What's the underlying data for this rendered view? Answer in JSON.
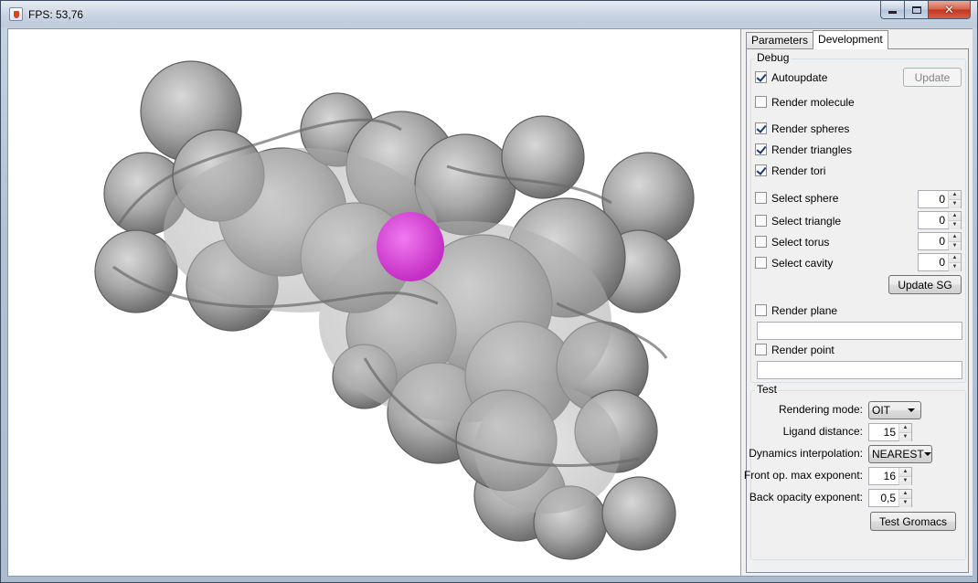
{
  "window": {
    "title": "FPS: 53,76"
  },
  "tabs": [
    {
      "label": "Parameters",
      "active": false
    },
    {
      "label": "Development",
      "active": true
    }
  ],
  "debug": {
    "title": "Debug",
    "autoupdate": {
      "label": "Autoupdate",
      "checked": true
    },
    "update_button": "Update",
    "render_molecule": {
      "label": "Render molecule",
      "checked": false
    },
    "render_spheres": {
      "label": "Render spheres",
      "checked": true
    },
    "render_triangles": {
      "label": "Render triangles",
      "checked": true
    },
    "render_tori": {
      "label": "Render tori",
      "checked": true
    },
    "select_sphere": {
      "label": "Select sphere",
      "checked": false,
      "value": "0"
    },
    "select_triangle": {
      "label": "Select triangle",
      "checked": false,
      "value": "0"
    },
    "select_torus": {
      "label": "Select torus",
      "checked": false,
      "value": "0"
    },
    "select_cavity": {
      "label": "Select cavity",
      "checked": false,
      "value": "0"
    },
    "update_sg_button": "Update SG",
    "render_plane": {
      "label": "Render plane",
      "checked": false,
      "value": ""
    },
    "render_point": {
      "label": "Render point",
      "checked": false,
      "value": ""
    }
  },
  "test": {
    "title": "Test",
    "rendering_mode": {
      "label": "Rendering mode:",
      "value": "OIT"
    },
    "ligand_distance": {
      "label": "Ligand distance:",
      "value": "15"
    },
    "dynamics_interpolation": {
      "label": "Dynamics interpolation:",
      "value": "NEAREST"
    },
    "front_op": {
      "label": "Front op. max exponent:",
      "value": "16"
    },
    "back_opacity": {
      "label": "Back opacity exponent:",
      "value": "0,5"
    },
    "test_gromacs_button": "Test Gromacs"
  },
  "viewport": {
    "surface_color": "#9a9a9a",
    "cavity_color": "#e040e0"
  }
}
